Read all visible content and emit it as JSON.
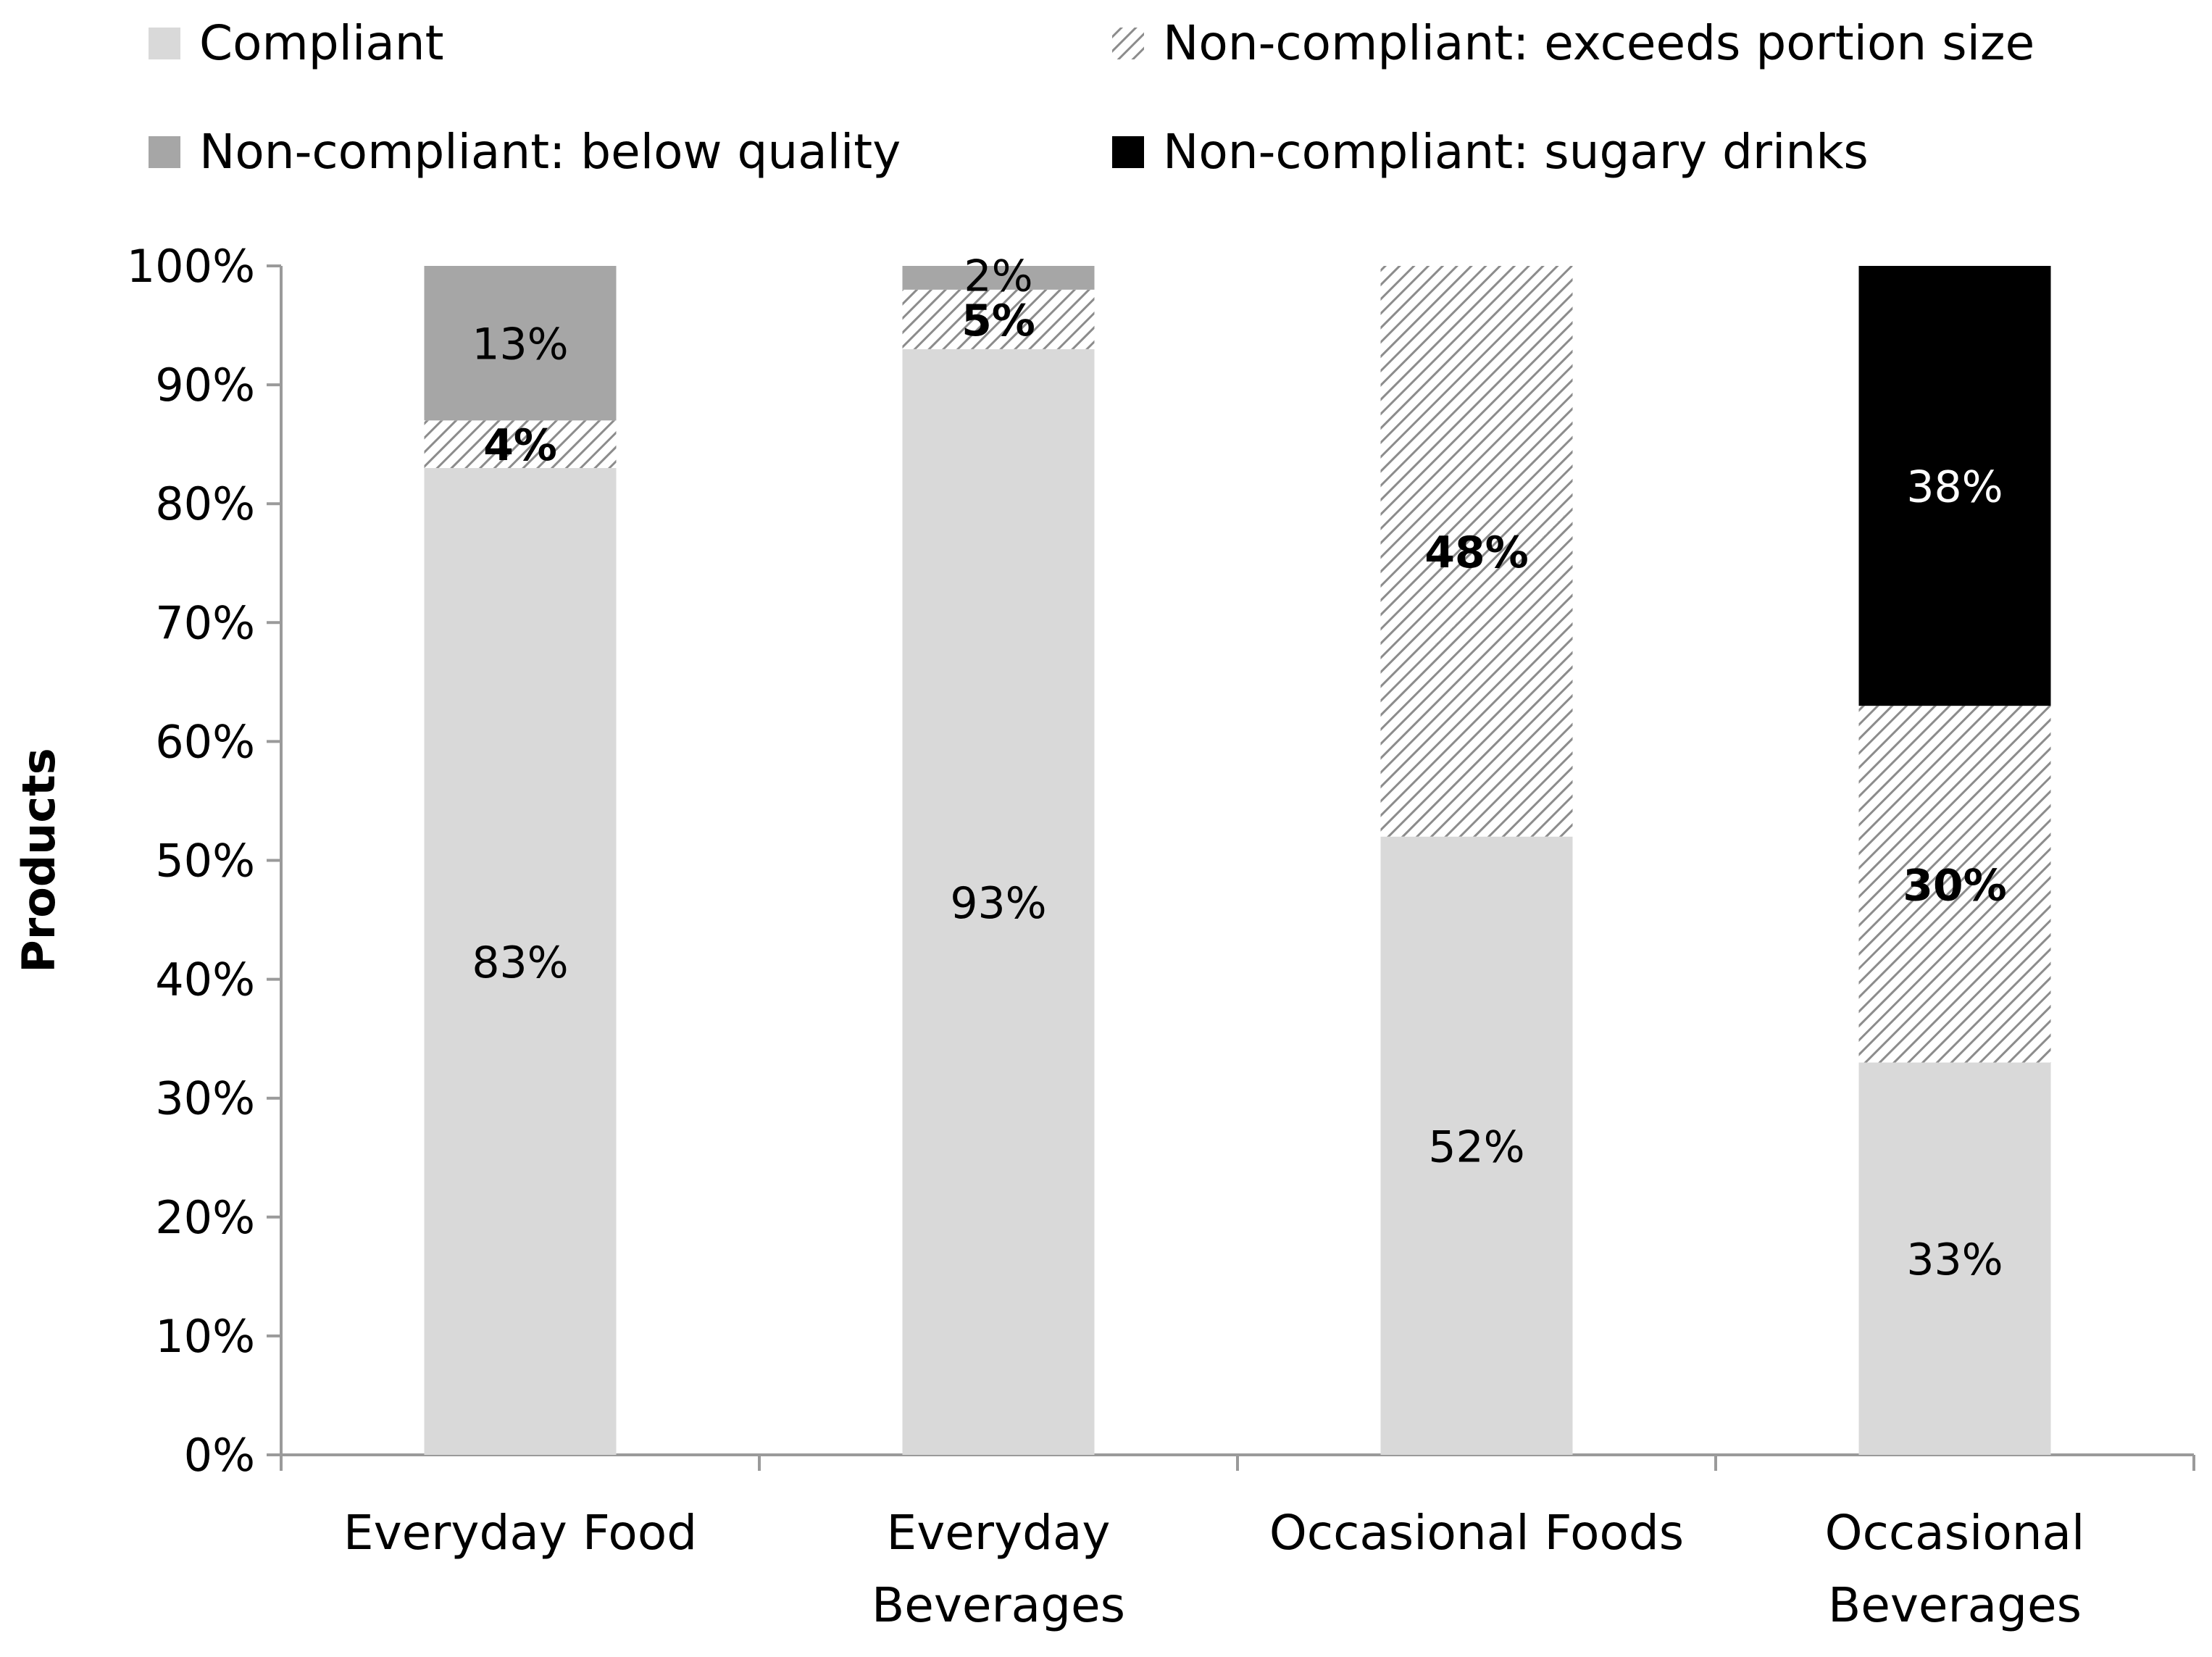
{
  "chart_data": {
    "type": "bar",
    "stacked": true,
    "title": "",
    "ylabel": "Products",
    "xlabel": "",
    "ylim": [
      0,
      100
    ],
    "yticks": [
      0,
      10,
      20,
      30,
      40,
      50,
      60,
      70,
      80,
      90,
      100
    ],
    "ytick_format": "{v}%",
    "categories": [
      [
        "Everyday Food"
      ],
      [
        "Everyday",
        "Beverages"
      ],
      [
        "Occasional Foods"
      ],
      [
        "Occasional",
        "Beverages"
      ]
    ],
    "legend": {
      "position": "top",
      "entries": [
        "Compliant",
        "Non-compliant: exceeds portion size",
        "Non-compliant: below quality",
        "Non-compliant: sugary drinks"
      ]
    },
    "series": [
      {
        "name": "Compliant",
        "fill": "solid",
        "color": "#d9d9d9",
        "label_color": "#000000",
        "label_bold": false,
        "values": [
          83,
          93,
          52,
          33
        ],
        "labels": [
          "83%",
          "93%",
          "52%",
          "33%"
        ]
      },
      {
        "name": "Non-compliant: exceeds portion size",
        "fill": "hatch",
        "color": "#ffffff",
        "hatch_color": "#8c8c8c",
        "label_color": "#000000",
        "label_bold": true,
        "values": [
          4,
          5,
          48,
          30
        ],
        "labels": [
          "4%",
          "5%",
          "48%",
          "30%"
        ]
      },
      {
        "name": "Non-compliant: below quality",
        "fill": "solid",
        "color": "#a6a6a6",
        "label_color": "#000000",
        "label_bold": false,
        "values": [
          13,
          2,
          0,
          0
        ],
        "labels": [
          "13%",
          "2%",
          "",
          ""
        ]
      },
      {
        "name": "Non-compliant: sugary drinks",
        "fill": "solid",
        "color": "#000000",
        "label_color": "#ffffff",
        "label_bold": false,
        "values": [
          0,
          0,
          0,
          38
        ],
        "labels": [
          "",
          "",
          "",
          "38%"
        ]
      }
    ]
  }
}
